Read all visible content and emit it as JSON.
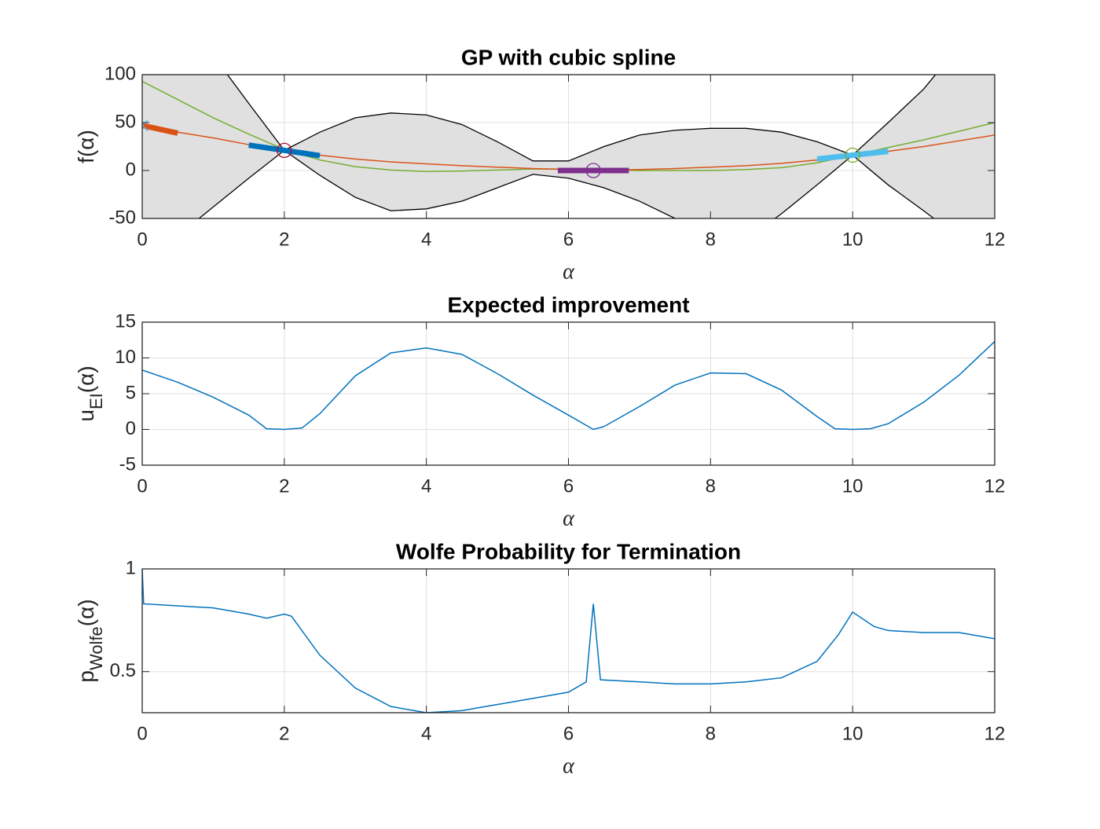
{
  "chart_data": [
    {
      "type": "line",
      "title": "GP with cubic spline",
      "xlabel": "α",
      "ylabel": [
        "f(α)"
      ],
      "xlim": [
        0,
        12
      ],
      "xticks": [
        0,
        2,
        4,
        6,
        8,
        10,
        12
      ],
      "ylim": [
        -50,
        100
      ],
      "yticks": [
        -50,
        0,
        50,
        100
      ],
      "grid": true,
      "x": [
        0,
        0.5,
        1,
        1.5,
        2,
        2.5,
        3,
        3.5,
        4,
        4.5,
        5,
        5.5,
        6,
        6.5,
        7,
        7.5,
        8,
        8.5,
        9,
        9.5,
        10,
        10.5,
        11,
        11.5,
        12
      ],
      "band": {
        "fill": "#e0e0e0",
        "line_color": "#000000",
        "upper": [
          180,
          150,
          120,
          70,
          21,
          40,
          55,
          60,
          58,
          48,
          30,
          10,
          10,
          25,
          37,
          42,
          44,
          44,
          40,
          30,
          16,
          50,
          85,
          130,
          180
        ],
        "lower": [
          -90,
          -68,
          -38,
          -8,
          21,
          -5,
          -28,
          -42,
          -40,
          -32,
          -18,
          -4,
          -8,
          -18,
          -32,
          -50,
          -65,
          -72,
          -45,
          -15,
          16,
          -15,
          -42,
          -70,
          -100
        ]
      },
      "series": [
        {
          "color": "#77ac30",
          "values": [
            93,
            74,
            55,
            38,
            22,
            11,
            4,
            0.5,
            -1,
            -0.5,
            0.5,
            1.5,
            1.5,
            0.5,
            0,
            0,
            0,
            1,
            3,
            8,
            16,
            24,
            32,
            41,
            50
          ]
        },
        {
          "color": "#d95319",
          "values": [
            47,
            40,
            34,
            27,
            21,
            16,
            12,
            9,
            7,
            5,
            3.5,
            2,
            1,
            0.5,
            1,
            2,
            3.5,
            5,
            7.5,
            11,
            16,
            20,
            25,
            31,
            37
          ]
        }
      ],
      "observations": {
        "x": [
          0,
          2,
          6.35,
          10
        ],
        "y": [
          47,
          21,
          0,
          16
        ],
        "slope": [
          -16,
          -11,
          0,
          8
        ],
        "marker": [
          "x",
          "o",
          "o",
          "o"
        ],
        "marker_colors": [
          "#4dbeee",
          "#a2142f",
          "#7e2f8e",
          "#77ac30"
        ],
        "slope_colors": [
          "#d95319",
          "#0072bd",
          "#7e2f8e",
          "#4dbeee"
        ]
      }
    },
    {
      "type": "line",
      "title": "Expected improvement",
      "xlabel": "α",
      "ylabel": [
        "u",
        "EI",
        "(α)"
      ],
      "xlim": [
        0,
        12
      ],
      "xticks": [
        0,
        2,
        4,
        6,
        8,
        10,
        12
      ],
      "ylim": [
        -5,
        15
      ],
      "yticks": [
        -5,
        0,
        5,
        10,
        15
      ],
      "grid": true,
      "x": [
        0,
        0.5,
        1,
        1.5,
        1.75,
        2,
        2.25,
        2.5,
        3,
        3.5,
        4,
        4.5,
        5,
        5.5,
        6,
        6.35,
        6.5,
        7,
        7.5,
        8,
        8.5,
        9,
        9.5,
        9.75,
        10,
        10.25,
        10.5,
        11,
        11.5,
        12
      ],
      "series": [
        {
          "color": "#0072bd",
          "values": [
            8.3,
            6.6,
            4.5,
            2.0,
            0.1,
            0.0,
            0.2,
            2.2,
            7.5,
            10.7,
            11.4,
            10.5,
            7.8,
            4.8,
            2.0,
            0,
            0.4,
            3.2,
            6.2,
            7.9,
            7.8,
            5.5,
            1.8,
            0.1,
            0.0,
            0.1,
            0.8,
            3.8,
            7.6,
            12.3
          ]
        }
      ]
    },
    {
      "type": "line",
      "title": "Wolfe Probability for Termination",
      "xlabel": "α",
      "ylabel": [
        "p",
        "Wolfe",
        "(α)"
      ],
      "xlim": [
        0,
        12
      ],
      "xticks": [
        0,
        2,
        4,
        6,
        8,
        10,
        12
      ],
      "ylim": [
        0.3,
        1
      ],
      "yticks": [
        0.5,
        1
      ],
      "grid": true,
      "x": [
        0,
        0.02,
        0.5,
        1,
        1.5,
        1.75,
        2,
        2.1,
        2.5,
        3,
        3.5,
        4,
        4.5,
        5,
        5.5,
        6,
        6.25,
        6.35,
        6.45,
        7,
        7.5,
        8,
        8.5,
        9,
        9.5,
        9.8,
        10,
        10.3,
        10.5,
        11,
        11.5,
        12
      ],
      "series": [
        {
          "color": "#0072bd",
          "values": [
            1.0,
            0.83,
            0.82,
            0.81,
            0.78,
            0.76,
            0.78,
            0.77,
            0.58,
            0.42,
            0.33,
            0.3,
            0.31,
            0.34,
            0.37,
            0.4,
            0.45,
            0.83,
            0.46,
            0.45,
            0.44,
            0.44,
            0.45,
            0.47,
            0.55,
            0.68,
            0.79,
            0.72,
            0.7,
            0.69,
            0.69,
            0.66
          ]
        }
      ]
    }
  ]
}
